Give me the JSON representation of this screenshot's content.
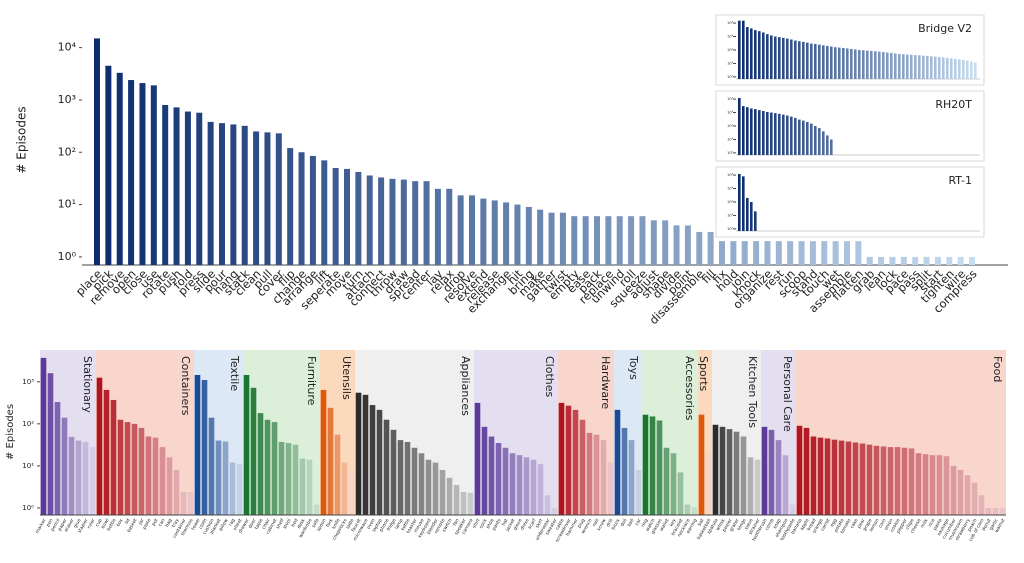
{
  "chart_data": [
    {
      "type": "bar",
      "y_label": "# Episodes",
      "log_scale": true,
      "colors": [
        "#0b2c6e",
        "#c6dcf0"
      ],
      "ylim": [
        0.7,
        42000
      ],
      "yticks": [
        {
          "value": 1,
          "label": "10⁰"
        },
        {
          "value": 10,
          "label": "10¹"
        },
        {
          "value": 100,
          "label": "10²"
        },
        {
          "value": 1000,
          "label": "10³"
        },
        {
          "value": 10000,
          "label": "10⁴"
        }
      ],
      "categories": [
        "place",
        "pick",
        "remove",
        "open",
        "close",
        "use",
        "rotate",
        "push",
        "fold",
        "press",
        "slide",
        "pour",
        "hang",
        "stack",
        "clean",
        "pull",
        "cover",
        "flip",
        "change",
        "arrange",
        "lift",
        "seperate",
        "move",
        "turn",
        "attach",
        "connect",
        "throw",
        "draw",
        "spread",
        "center",
        "lay",
        "relax",
        "drop",
        "resolve",
        "extend",
        "release",
        "exchange",
        "hit",
        "bring",
        "make",
        "gather",
        "twist",
        "empty",
        "ease",
        "pack",
        "replace",
        "unwind",
        "roll",
        "squeeze",
        "adjust",
        "shape",
        "divide",
        "point",
        "disassemble",
        "fill",
        "fix",
        "hold",
        "join",
        "knock",
        "organize",
        "rest",
        "run",
        "scoop",
        "stand",
        "touch",
        "wet",
        "assemble",
        "flatten",
        "grab",
        "lean",
        "lock",
        "pace",
        "pass",
        "split",
        "start",
        "tighten",
        "wire",
        "compress"
      ],
      "values": [
        15000,
        4500,
        3300,
        2400,
        2100,
        1900,
        800,
        720,
        600,
        570,
        380,
        360,
        340,
        320,
        250,
        240,
        230,
        120,
        100,
        85,
        70,
        50,
        48,
        42,
        36,
        33,
        31,
        30,
        28,
        28,
        20,
        20,
        15,
        15,
        13,
        12,
        11,
        10,
        9,
        8,
        7,
        7,
        6,
        6,
        6,
        6,
        6,
        6,
        6,
        5,
        5,
        4,
        4,
        3,
        3,
        2,
        2,
        2,
        2,
        2,
        2,
        2,
        2,
        2,
        2,
        2,
        2,
        2,
        1,
        1,
        1,
        1,
        1,
        1,
        1,
        1,
        1,
        1
      ]
    },
    {
      "type": "inset",
      "title": "Bridge V2",
      "log_scale": true,
      "colors": [
        "#0b2c6e",
        "#c6dcf0"
      ],
      "ylim": [
        0.7,
        20000
      ],
      "yticks": [
        {
          "value": 1,
          "label": "10⁰"
        },
        {
          "value": 10,
          "label": "10¹"
        },
        {
          "value": 100,
          "label": "10²"
        },
        {
          "value": 1000,
          "label": "10³"
        },
        {
          "value": 10000,
          "label": "10⁴"
        }
      ],
      "values": [
        15000,
        15000,
        5000,
        4000,
        3000,
        2500,
        2000,
        1500,
        1200,
        1000,
        900,
        800,
        700,
        600,
        500,
        450,
        400,
        350,
        300,
        280,
        250,
        220,
        200,
        180,
        160,
        150,
        140,
        130,
        120,
        110,
        100,
        95,
        90,
        85,
        80,
        75,
        70,
        65,
        60,
        55,
        50,
        48,
        46,
        44,
        42,
        40,
        38,
        36,
        34,
        32,
        30,
        28,
        26,
        24,
        22,
        20,
        18,
        16,
        14,
        12
      ]
    },
    {
      "type": "inset",
      "title": "RH20T",
      "log_scale": true,
      "colors": [
        "#0b2c6e",
        "#c6dcf0"
      ],
      "ylim": [
        0.7,
        20000
      ],
      "yticks": [
        {
          "value": 1,
          "label": "10⁰"
        },
        {
          "value": 10,
          "label": "10¹"
        },
        {
          "value": 100,
          "label": "10²"
        },
        {
          "value": 1000,
          "label": "10³"
        },
        {
          "value": 10000,
          "label": "10⁴"
        }
      ],
      "values": [
        12000,
        3000,
        2500,
        2000,
        1800,
        1500,
        1300,
        1100,
        1000,
        900,
        800,
        700,
        600,
        500,
        400,
        300,
        250,
        200,
        150,
        100,
        70,
        40,
        20,
        10
      ]
    },
    {
      "type": "inset",
      "title": "RT-1",
      "log_scale": true,
      "colors": [
        "#0b2c6e",
        "#c6dcf0"
      ],
      "ylim": [
        0.7,
        20000
      ],
      "yticks": [
        {
          "value": 1,
          "label": "10⁰"
        },
        {
          "value": 10,
          "label": "10¹"
        },
        {
          "value": 100,
          "label": "10²"
        },
        {
          "value": 1000,
          "label": "10³"
        },
        {
          "value": 10000,
          "label": "10⁴"
        }
      ],
      "values": [
        12000,
        8000,
        200,
        100,
        20
      ]
    },
    {
      "type": "groupbar",
      "y_label": "# Episodes",
      "log_scale": true,
      "ylim": [
        0.68,
        5700
      ],
      "yticks": [
        {
          "value": 1,
          "label": "10⁰"
        },
        {
          "value": 10,
          "label": "10¹"
        },
        {
          "value": 100,
          "label": "10²"
        },
        {
          "value": 1000,
          "label": "10³"
        }
      ],
      "groups": [
        {
          "name": "Stationary",
          "color": "#5b3a9a",
          "background": "#e4dff0",
          "categories": [
            "marker",
            "pen",
            "pencil",
            "paper",
            "eraser",
            "glue",
            "stapler",
            "ruler"
          ],
          "values": [
            3700,
            1600,
            330,
            140,
            49,
            40,
            37,
            28
          ]
        },
        {
          "name": "Containers",
          "color": "#b0141e",
          "background": "#f8d6cc",
          "categories": [
            "cup",
            "bowl",
            "bottle",
            "box",
            "lid",
            "basket",
            "jar",
            "plate",
            "pot",
            "can",
            "bag",
            "tray",
            "container",
            "thermos"
          ],
          "values": [
            1250,
            640,
            370,
            125,
            110,
            100,
            80,
            50,
            47,
            28,
            16,
            8,
            2.4,
            2.4
          ]
        },
        {
          "name": "Textile",
          "color": "#1b4a93",
          "background": "#dce8f5",
          "categories": [
            "towel",
            "cloth",
            "cushion",
            "blanket",
            "pillow",
            "rag",
            "sheet"
          ],
          "values": [
            1450,
            1100,
            140,
            40,
            38,
            12,
            11
          ]
        },
        {
          "name": "Furniture",
          "color": "#1a7530",
          "background": "#dcefd9",
          "categories": [
            "drawer",
            "door",
            "table",
            "chair",
            "cabinet",
            "shelf",
            "stool",
            "bed",
            "desk",
            "wardrobe",
            "sofa"
          ],
          "values": [
            1450,
            720,
            180,
            125,
            110,
            37,
            35,
            32,
            15,
            14,
            1.2
          ]
        },
        {
          "name": "Utensils",
          "color": "#e0580c",
          "background": "#fbd9bc",
          "categories": [
            "spoon",
            "fork",
            "knife",
            "chopsticks",
            "ladle"
          ],
          "values": [
            640,
            240,
            55,
            12,
            8
          ]
        },
        {
          "name": "Appliances",
          "color": "#2b2b2b",
          "background": "#efefef",
          "categories": [
            "faucet",
            "microwave",
            "oven",
            "laptop",
            "phone",
            "fridge",
            "lamp",
            "kettle",
            "toaster",
            "mouse",
            "keyboard",
            "blender",
            "remote",
            "switch",
            "fan",
            "speaker",
            "camera"
          ],
          "values": [
            550,
            490,
            280,
            215,
            125,
            72,
            41,
            37,
            27,
            20,
            14,
            12,
            8,
            5.2,
            3.5,
            2.4,
            2.3
          ]
        },
        {
          "name": "Clothes",
          "color": "#5b3a9a",
          "background": "#e4dff0",
          "categories": [
            "shirt",
            "sock",
            "shoe",
            "pants",
            "hat",
            "jacket",
            "glove",
            "dress",
            "scarf",
            "skirt",
            "underwear",
            "sweater"
          ],
          "values": [
            315,
            85,
            50,
            35,
            27,
            20,
            18,
            16,
            14,
            11,
            2,
            1
          ]
        },
        {
          "name": "Hardware",
          "color": "#b0141e",
          "background": "#f8d6cc",
          "categories": [
            "cable",
            "screwdriver",
            "hammer",
            "plug",
            "wrench",
            "nail",
            "screw",
            "drill"
          ],
          "values": [
            315,
            270,
            215,
            125,
            61,
            55,
            41,
            12
          ]
        },
        {
          "name": "Toys",
          "color": "#1b4a93",
          "background": "#dce8f5",
          "categories": [
            "block",
            "doll",
            "ball",
            "car"
          ],
          "values": [
            215,
            80,
            41,
            8
          ]
        },
        {
          "name": "Accessories",
          "color": "#1a7530",
          "background": "#dcefd9",
          "categories": [
            "ring",
            "watch",
            "glasses",
            "wallet",
            "key",
            "bracelet",
            "necklace",
            "earring"
          ],
          "values": [
            165,
            150,
            120,
            27,
            20,
            7,
            1.2,
            1.05
          ]
        },
        {
          "name": "Sports",
          "color": "#e0580c",
          "background": "#fbd9bc",
          "categories": [
            "bat",
            "basketball"
          ],
          "values": [
            165,
            21
          ]
        },
        {
          "name": "Kitchen Tools",
          "color": "#2b2b2b",
          "background": "#efefef",
          "categories": [
            "spatula",
            "whisk",
            "peeler",
            "grater",
            "tongs",
            "sieve",
            "strainer"
          ],
          "values": [
            95,
            85,
            75,
            65,
            50,
            16,
            14
          ]
        },
        {
          "name": "Personal Care",
          "color": "#5b3a9a",
          "background": "#e4dff0",
          "categories": [
            "toothbrush",
            "comb",
            "soap",
            "shampoo",
            "toothpaste"
          ],
          "values": [
            85,
            72,
            41,
            18,
            1.2
          ]
        },
        {
          "name": "Food",
          "color": "#b0141e",
          "background": "#f8d6cc",
          "categories": [
            "banana",
            "apple",
            "bread",
            "orange",
            "carrot",
            "egg",
            "potato",
            "tomato",
            "cake",
            "pear",
            "grape",
            "lemon",
            "corn",
            "onion",
            "cookie",
            "pepper",
            "chips",
            "cheese",
            "milk",
            "rice",
            "pasta",
            "sausage",
            "cucumber",
            "mushroom",
            "strawberry",
            "peach",
            "cob of corn",
            "donut",
            "garlic",
            "walnut"
          ],
          "values": [
            90,
            80,
            50,
            47,
            45,
            42,
            40,
            38,
            36,
            34,
            32,
            30,
            29,
            28,
            28,
            27,
            26,
            20,
            19,
            18,
            18,
            17,
            10,
            8,
            6,
            4,
            2,
            1,
            1,
            1
          ]
        }
      ]
    }
  ]
}
